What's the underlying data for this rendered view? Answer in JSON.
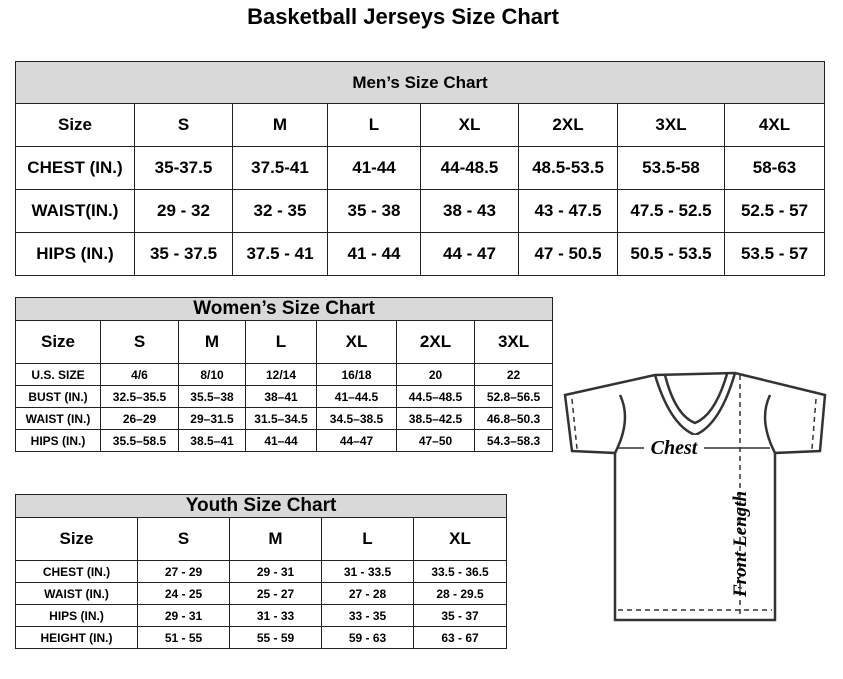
{
  "title": "Basketball Jerseys Size Chart",
  "men": {
    "heading": "Men’s Size Chart",
    "header": [
      "Size",
      "S",
      "M",
      "L",
      "XL",
      "2XL",
      "3XL",
      "4XL"
    ],
    "rows": [
      [
        "CHEST (IN.)",
        "35-37.5",
        "37.5-41",
        "41-44",
        "44-48.5",
        "48.5-53.5",
        "53.5-58",
        "58-63"
      ],
      [
        "WAIST(IN.)",
        "29 - 32",
        "32 - 35",
        "35 - 38",
        "38 - 43",
        "43 - 47.5",
        "47.5 - 52.5",
        "52.5 - 57"
      ],
      [
        "HIPS (IN.)",
        "35 - 37.5",
        "37.5 - 41",
        "41 - 44",
        "44 - 47",
        "47 - 50.5",
        "50.5 - 53.5",
        "53.5 - 57"
      ]
    ]
  },
  "women": {
    "heading": "Women’s Size Chart",
    "header": [
      "Size",
      "S",
      "M",
      "L",
      "XL",
      "2XL",
      "3XL"
    ],
    "rows": [
      [
        "U.S. SIZE",
        "4/6",
        "8/10",
        "12/14",
        "16/18",
        "20",
        "22"
      ],
      [
        "BUST (IN.)",
        "32.5–35.5",
        "35.5–38",
        "38–41",
        "41–44.5",
        "44.5–48.5",
        "52.8–56.5"
      ],
      [
        "WAIST (IN.)",
        "26–29",
        "29–31.5",
        "31.5–34.5",
        "34.5–38.5",
        "38.5–42.5",
        "46.8–50.3"
      ],
      [
        "HIPS (IN.)",
        "35.5–58.5",
        "38.5–41",
        "41–44",
        "44–47",
        "47–50",
        "54.3–58.3"
      ]
    ]
  },
  "youth": {
    "heading": "Youth Size Chart",
    "header": [
      "Size",
      "S",
      "M",
      "L",
      "XL"
    ],
    "rows": [
      [
        "CHEST (IN.)",
        "27 - 29",
        "29 - 31",
        "31 - 33.5",
        "33.5 - 36.5"
      ],
      [
        "WAIST (IN.)",
        "24 - 25",
        "25 - 27",
        "27 - 28",
        "28 - 29.5"
      ],
      [
        "HIPS (IN.)",
        "29 - 31",
        "31 - 33",
        "33 - 35",
        "35 - 37"
      ],
      [
        "HEIGHT (IN.)",
        "51 - 55",
        "55 - 59",
        "59 - 63",
        "63 - 67"
      ]
    ]
  },
  "diagram": {
    "chest_label": "Chest",
    "length_label": "Front Length"
  }
}
